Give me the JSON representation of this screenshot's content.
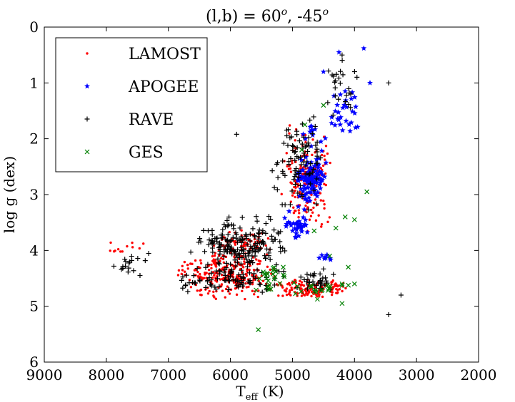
{
  "chart_data": {
    "type": "scatter",
    "title_main": "(l,b) = 60",
    "title_sup1": "o",
    "title_mid": ", -45",
    "title_sup2": "o",
    "xlabel_main": "T",
    "xlabel_sub": "eff",
    "xlabel_tail": " (K)",
    "ylabel": "log g (dex)",
    "xlim": [
      9000,
      2000
    ],
    "ylim": [
      6,
      0
    ],
    "xticks": [
      9000,
      8000,
      7000,
      6000,
      5000,
      4000,
      3000,
      2000
    ],
    "yticks": [
      0,
      1,
      2,
      3,
      4,
      5,
      6
    ],
    "grid": false,
    "legend_position": "upper-left",
    "series": [
      {
        "name": "LAMOST",
        "marker": "dot",
        "color": "#ff0000",
        "clusters": [
          {
            "n": 260,
            "x": [
              5200,
              6900
            ],
            "y": [
              4.0,
              4.9
            ]
          },
          {
            "n": 130,
            "x": [
              4100,
              5300
            ],
            "y": [
              4.5,
              4.85
            ]
          },
          {
            "n": 170,
            "x": [
              4350,
              5200
            ],
            "y": [
              1.7,
              3.7
            ]
          },
          {
            "n": 80,
            "x": [
              5300,
              6300
            ],
            "y": [
              3.6,
              4.2
            ]
          },
          {
            "n": 12,
            "x": [
              6900,
              8200
            ],
            "y": [
              3.8,
              4.1
            ]
          }
        ]
      },
      {
        "name": "APOGEE",
        "marker": "star",
        "color": "#0000ff",
        "clusters": [
          {
            "n": 110,
            "x": [
              4450,
              4950
            ],
            "y": [
              2.2,
              3.2
            ]
          },
          {
            "n": 35,
            "x": [
              4700,
              5150
            ],
            "y": [
              3.2,
              3.8
            ]
          },
          {
            "n": 30,
            "x": [
              3900,
              4450
            ],
            "y": [
              1.0,
              2.0
            ]
          },
          {
            "n": 12,
            "x": [
              4400,
              4850
            ],
            "y": [
              1.6,
              2.2
            ]
          },
          {
            "n": 8,
            "x": [
              4350,
              4600
            ],
            "y": [
              4.05,
              4.2
            ]
          }
        ],
        "points": [
          [
            3850,
            0.38
          ],
          [
            4250,
            0.45
          ],
          [
            3750,
            1.0
          ],
          [
            4500,
            0.8
          ]
        ]
      },
      {
        "name": "RAVE",
        "marker": "plus",
        "color": "#000000",
        "clusters": [
          {
            "n": 200,
            "x": [
              5000,
              6700
            ],
            "y": [
              3.3,
              4.5
            ]
          },
          {
            "n": 80,
            "x": [
              5000,
              7000
            ],
            "y": [
              4.3,
              4.8
            ]
          },
          {
            "n": 90,
            "x": [
              4400,
              5400
            ],
            "y": [
              1.5,
              3.3
            ]
          },
          {
            "n": 25,
            "x": [
              3900,
              4500
            ],
            "y": [
              0.5,
              1.6
            ]
          },
          {
            "n": 35,
            "x": [
              4200,
              5000
            ],
            "y": [
              4.3,
              4.85
            ]
          },
          {
            "n": 18,
            "x": [
              7300,
              8000
            ],
            "y": [
              4.0,
              4.5
            ]
          }
        ],
        "points": [
          [
            5900,
            1.92
          ],
          [
            3450,
            1.0
          ],
          [
            3450,
            5.15
          ],
          [
            3250,
            4.8
          ],
          [
            4200,
            0.5
          ]
        ]
      },
      {
        "name": "GES",
        "marker": "x",
        "color": "#008000",
        "clusters": [
          {
            "n": 25,
            "x": [
              5000,
              5600
            ],
            "y": [
              4.2,
              4.8
            ]
          },
          {
            "n": 20,
            "x": [
              4050,
              5000
            ],
            "y": [
              4.5,
              4.9
            ]
          }
        ],
        "points": [
          [
            5550,
            5.42
          ],
          [
            3800,
            2.95
          ],
          [
            4150,
            3.4
          ],
          [
            4000,
            3.45
          ],
          [
            4300,
            3.6
          ],
          [
            4200,
            4.6
          ],
          [
            4000,
            4.6
          ],
          [
            4200,
            4.95
          ],
          [
            4400,
            4.1
          ],
          [
            4100,
            4.3
          ],
          [
            4500,
            1.4
          ],
          [
            4850,
            2.2
          ],
          [
            4650,
            3.65
          ],
          [
            4800,
            1.75
          ]
        ]
      }
    ]
  }
}
